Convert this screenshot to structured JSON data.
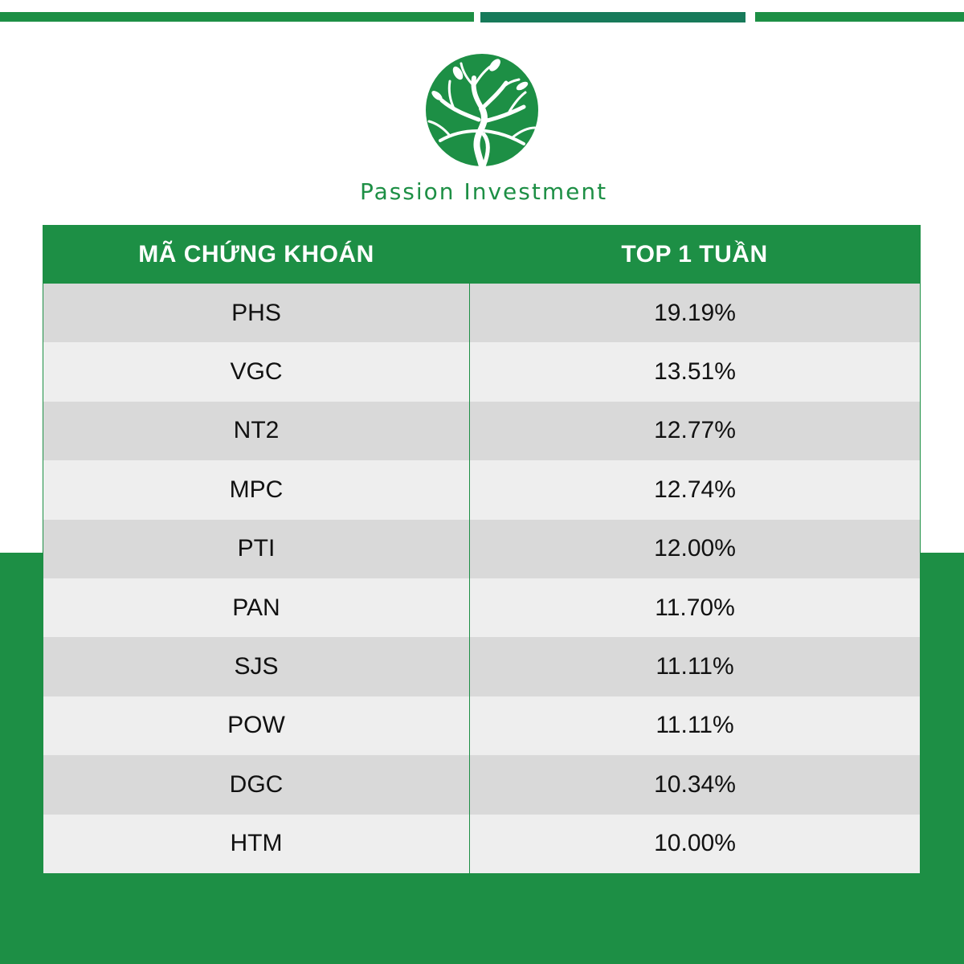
{
  "header": {
    "brand_name": "Passion Investment"
  },
  "colors": {
    "brand_green": "#1d8f45",
    "bar_accent": "#177a5a",
    "row_dark": "#d9d9d9",
    "row_light": "#eeeeee"
  },
  "table": {
    "columns": [
      "MÃ CHỨNG KHOÁN",
      "TOP 1 TUẦN"
    ],
    "rows": [
      {
        "ticker": "PHS",
        "value": "19.19%"
      },
      {
        "ticker": "VGC",
        "value": "13.51%"
      },
      {
        "ticker": "NT2",
        "value": "12.77%"
      },
      {
        "ticker": "MPC",
        "value": "12.74%"
      },
      {
        "ticker": "PTI",
        "value": "12.00%"
      },
      {
        "ticker": "PAN",
        "value": "11.70%"
      },
      {
        "ticker": "SJS",
        "value": "11.11%"
      },
      {
        "ticker": "POW",
        "value": "11.11%"
      },
      {
        "ticker": "DGC",
        "value": "10.34%"
      },
      {
        "ticker": "HTM",
        "value": "10.00%"
      }
    ]
  }
}
